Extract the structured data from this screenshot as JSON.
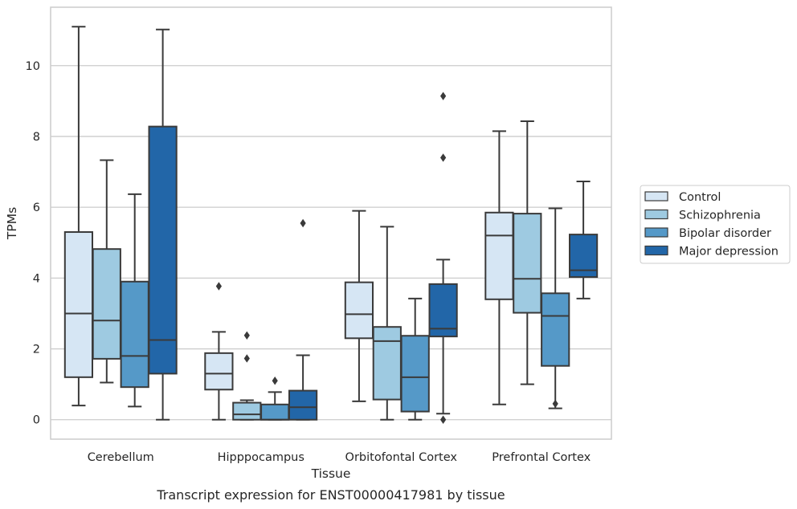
{
  "caption": "Transcript expression for ENST00000417981 by tissue",
  "chart_data": {
    "type": "box",
    "title": "",
    "xlabel": "Tissue",
    "ylabel": "TPMs",
    "ylim": [
      -0.55,
      11.65
    ],
    "yticks": [
      0,
      2,
      4,
      6,
      8,
      10
    ],
    "ytick_labels": [
      "0",
      "2",
      "4",
      "6",
      "8",
      "10"
    ],
    "grid": "horizontal",
    "legend_position": "right",
    "categories": [
      "Cerebellum",
      "Hipppocampus",
      "Orbitofontal Cortex",
      "Prefrontal Cortex"
    ],
    "series": [
      {
        "name": "Control",
        "color": "#d6e6f4",
        "boxes": [
          {
            "whislo": 0.4,
            "q1": 1.2,
            "med": 3.0,
            "q3": 5.3,
            "whishi": 11.1,
            "fliers": []
          },
          {
            "whislo": 0.0,
            "q1": 0.85,
            "med": 1.3,
            "q3": 1.88,
            "whishi": 2.48,
            "fliers": [
              3.77
            ]
          },
          {
            "whislo": 0.52,
            "q1": 2.3,
            "med": 2.98,
            "q3": 3.88,
            "whishi": 5.9,
            "fliers": []
          },
          {
            "whislo": 0.43,
            "q1": 3.4,
            "med": 5.2,
            "q3": 5.85,
            "whishi": 8.15,
            "fliers": []
          }
        ]
      },
      {
        "name": "Schizophrenia",
        "color": "#9ecae1",
        "boxes": [
          {
            "whislo": 1.05,
            "q1": 1.72,
            "med": 2.8,
            "q3": 4.82,
            "whishi": 7.33,
            "fliers": []
          },
          {
            "whislo": 0.0,
            "q1": 0.0,
            "med": 0.15,
            "q3": 0.48,
            "whishi": 0.55,
            "fliers": [
              1.73,
              2.38
            ]
          },
          {
            "whislo": 0.0,
            "q1": 0.57,
            "med": 2.22,
            "q3": 2.62,
            "whishi": 5.45,
            "fliers": []
          },
          {
            "whislo": 1.0,
            "q1": 3.02,
            "med": 3.98,
            "q3": 5.82,
            "whishi": 8.43,
            "fliers": []
          }
        ]
      },
      {
        "name": "Bipolar disorder",
        "color": "#5599c8",
        "boxes": [
          {
            "whislo": 0.37,
            "q1": 0.92,
            "med": 1.8,
            "q3": 3.9,
            "whishi": 6.37,
            "fliers": []
          },
          {
            "whislo": 0.0,
            "q1": 0.0,
            "med": 0.0,
            "q3": 0.43,
            "whishi": 0.78,
            "fliers": [
              1.1
            ]
          },
          {
            "whislo": 0.0,
            "q1": 0.23,
            "med": 1.2,
            "q3": 2.37,
            "whishi": 3.42,
            "fliers": []
          },
          {
            "whislo": 0.32,
            "q1": 1.52,
            "med": 2.93,
            "q3": 3.57,
            "whishi": 5.97,
            "fliers": [
              0.45
            ]
          }
        ]
      },
      {
        "name": "Major depression",
        "color": "#2266a8",
        "boxes": [
          {
            "whislo": 0.0,
            "q1": 1.3,
            "med": 2.25,
            "q3": 8.28,
            "whishi": 11.02,
            "fliers": []
          },
          {
            "whislo": 0.0,
            "q1": 0.0,
            "med": 0.35,
            "q3": 0.82,
            "whishi": 1.82,
            "fliers": [
              5.55
            ]
          },
          {
            "whislo": 0.17,
            "q1": 2.35,
            "med": 2.57,
            "q3": 3.83,
            "whishi": 4.52,
            "fliers": [
              0.0,
              7.4,
              9.14
            ]
          },
          {
            "whislo": 3.42,
            "q1": 4.03,
            "med": 4.22,
            "q3": 5.23,
            "whishi": 6.73,
            "fliers": []
          }
        ]
      }
    ]
  }
}
